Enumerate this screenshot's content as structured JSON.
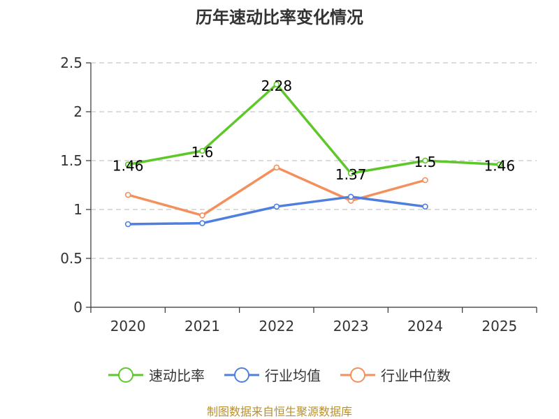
{
  "chart_data": {
    "type": "line",
    "title": "历年速动比率变化情况",
    "categories": [
      "2020",
      "2021",
      "2022",
      "2023",
      "2024",
      "2025"
    ],
    "ylim": [
      0,
      2.5
    ],
    "yticks": [
      "0",
      "0.5",
      "1",
      "1.5",
      "2",
      "2.5"
    ],
    "grid": true,
    "legend_position": "bottom",
    "series": [
      {
        "name": "速动比率",
        "color": "#5ec82b",
        "values": [
          1.46,
          1.6,
          2.28,
          1.37,
          1.5,
          1.46
        ],
        "labels": [
          "1.46",
          "1.6",
          "2.28",
          "1.37",
          "1.5",
          "1.46"
        ]
      },
      {
        "name": "行业均值",
        "color": "#4f7fde",
        "values": [
          0.85,
          0.86,
          1.03,
          1.13,
          1.03,
          null
        ]
      },
      {
        "name": "行业中位数",
        "color": "#f4905b",
        "values": [
          1.15,
          0.94,
          1.43,
          1.09,
          1.3,
          null
        ]
      }
    ]
  },
  "source_note": "制图数据来自恒生聚源数据库"
}
